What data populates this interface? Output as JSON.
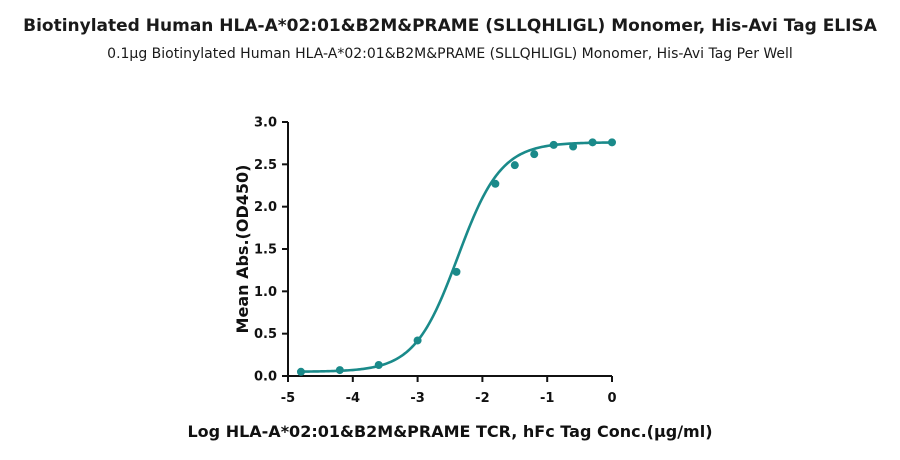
{
  "chart_data": {
    "type": "scatter",
    "title": "Biotinylated Human HLA-A*02:01&B2M&PRAME (SLLQHLIGL) Monomer, His-Avi Tag ELISA",
    "subtitle": "0.1μg Biotinylated Human HLA-A*02:01&B2M&PRAME (SLLQHLIGL) Monomer, His-Avi Tag Per Well",
    "xlabel": "Log HLA-A*02:01&B2M&PRAME TCR, hFc Tag Conc.(μg/ml)",
    "ylabel": "Mean Abs.(OD450)",
    "xlim": [
      -5,
      0
    ],
    "ylim": [
      0,
      3
    ],
    "xticks": [
      -5,
      -4,
      -3,
      -2,
      -1,
      0
    ],
    "yticks": [
      0.0,
      0.5,
      1.0,
      1.5,
      2.0,
      2.5,
      3.0
    ],
    "xtick_labels": [
      "-5",
      "-4",
      "-3",
      "-2",
      "-1",
      "0"
    ],
    "ytick_labels": [
      "0.0",
      "0.5",
      "1.0",
      "1.5",
      "2.0",
      "2.5",
      "3.0"
    ],
    "grid": false,
    "color": "#1a8a8a",
    "series": [
      {
        "x": [
          -4.8,
          -4.2,
          -3.6,
          -3.0,
          -2.4,
          -1.8,
          -1.5,
          -1.2,
          -0.9,
          -0.6,
          -0.3,
          0.0
        ],
        "y": [
          0.05,
          0.07,
          0.13,
          0.42,
          1.23,
          2.27,
          2.49,
          2.62,
          2.73,
          2.71,
          2.76,
          2.76
        ],
        "fit": {
          "model": "4PL",
          "bottom": 0.05,
          "top": 2.76,
          "logEC50": -2.38,
          "hill": 1.3
        }
      }
    ]
  }
}
